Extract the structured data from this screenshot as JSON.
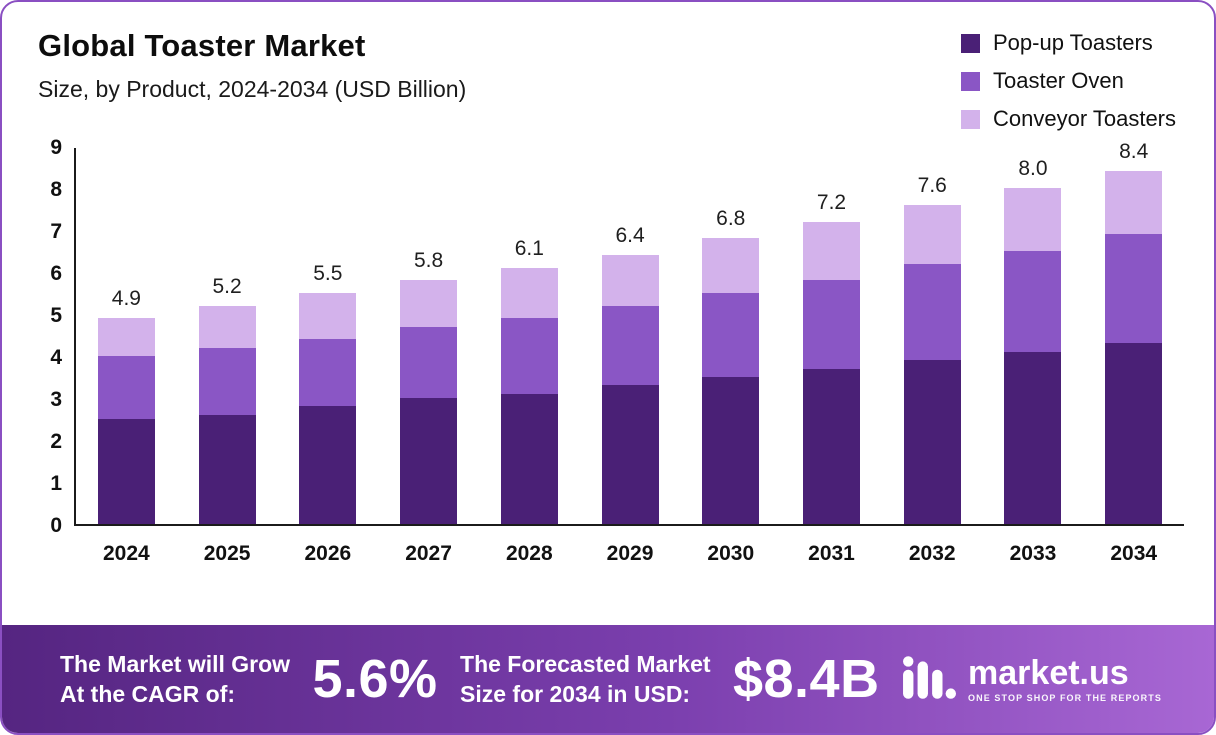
{
  "header": {
    "title": "Global Toaster Market",
    "subtitle": "Size, by Product, 2024-2034 (USD Billion)"
  },
  "legend": [
    {
      "label": "Pop-up Toasters",
      "color": "#4a2076"
    },
    {
      "label": "Toaster Oven",
      "color": "#8a56c5"
    },
    {
      "label": "Conveyor Toasters",
      "color": "#d3b2eb"
    }
  ],
  "chart_data": {
    "type": "bar",
    "stacked": true,
    "title": "Global Toaster Market Size, by Product, 2024-2034 (USD Billion)",
    "categories": [
      "2024",
      "2025",
      "2026",
      "2027",
      "2028",
      "2029",
      "2030",
      "2031",
      "2032",
      "2033",
      "2034"
    ],
    "series": [
      {
        "name": "Pop-up Toasters",
        "color": "#4a2076",
        "values": [
          2.5,
          2.6,
          2.8,
          3.0,
          3.1,
          3.3,
          3.5,
          3.7,
          3.9,
          4.1,
          4.3
        ]
      },
      {
        "name": "Toaster Oven",
        "color": "#8a56c5",
        "values": [
          1.5,
          1.6,
          1.6,
          1.7,
          1.8,
          1.9,
          2.0,
          2.1,
          2.3,
          2.4,
          2.6
        ]
      },
      {
        "name": "Conveyor Toasters",
        "color": "#d3b2eb",
        "values": [
          0.9,
          1.0,
          1.1,
          1.1,
          1.2,
          1.2,
          1.3,
          1.4,
          1.4,
          1.5,
          1.5
        ]
      }
    ],
    "totals": [
      4.9,
      5.2,
      5.5,
      5.8,
      6.1,
      6.4,
      6.8,
      7.2,
      7.6,
      8.0,
      8.4
    ],
    "xlabel": "",
    "ylabel": "",
    "ylim": [
      0,
      9
    ],
    "yticks": [
      0,
      1,
      2,
      3,
      4,
      5,
      6,
      7,
      8,
      9
    ],
    "grid": false,
    "legend_position": "top-right"
  },
  "footer": {
    "cagr_label": [
      "The Market will Grow",
      "At the CAGR of:"
    ],
    "cagr_value": "5.6%",
    "forecast_label": [
      "The Forecasted Market",
      "Size for 2034 in USD:"
    ],
    "forecast_value": "$8.4B",
    "brand": "market.us",
    "tagline": "One Stop Shop For The Reports"
  }
}
